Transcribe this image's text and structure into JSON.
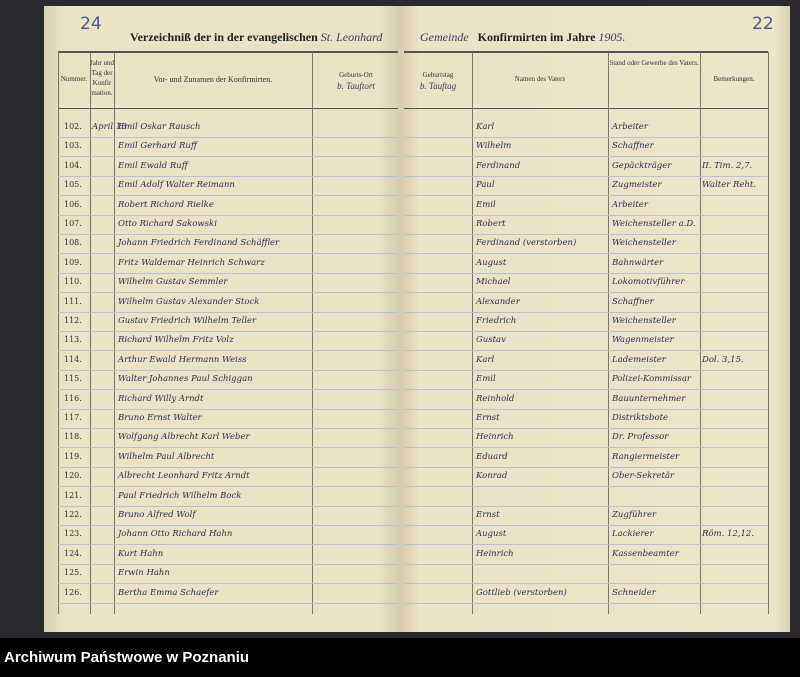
{
  "page_numbers": {
    "left": "24",
    "right": "22"
  },
  "title": {
    "left": "Verzeichniß der in der evangelischen",
    "left_hand": "St. Leonhard",
    "right_hand": "Gemeinde",
    "right": "Konfirmirten im Jahre",
    "year": "1905."
  },
  "headers": {
    "nummer": "Nummer.",
    "jahr": "Jahr und Tag der Konfirmation.",
    "name": "Vor- und Zunamen der Konfirmirten.",
    "geburtsort": "Geburts-Ort",
    "geburtsort_hand": "b. Tauftort",
    "geburtstag": "Geburtstag",
    "geburtstag_hand": "b. Tauftag",
    "vater": "Namen des Vaters",
    "stand": "Stand oder Gewerbe des Vaters.",
    "bemerkungen": "Bemerkungen."
  },
  "rows": [
    {
      "n": "102.",
      "date": "April 16",
      "name": "Emil Oskar Rausch",
      "father": "Karl",
      "stand": "Arbeiter"
    },
    {
      "n": "103.",
      "date": "",
      "name": "Emil Gerhard Ruff",
      "father": "Wilhelm",
      "stand": "Schaffner"
    },
    {
      "n": "104.",
      "date": "",
      "name": "Emil Ewald Ruff",
      "father": "Ferdinand",
      "stand": "Gepäckträger",
      "remark": "II. Tim. 2,7."
    },
    {
      "n": "105.",
      "date": "",
      "name": "Emil Adolf Walter Reimann",
      "father": "Paul",
      "stand": "Zugmeister",
      "remark": "Walter Reht."
    },
    {
      "n": "106.",
      "date": "",
      "name": "Robert Richard Rielke",
      "father": "Emil",
      "stand": "Arbeiter"
    },
    {
      "n": "107.",
      "date": "",
      "name": "Otto Richard Sakowski",
      "father": "Robert",
      "stand": "Weichensteller a.D."
    },
    {
      "n": "108.",
      "date": "",
      "name": "Johann Friedrich Ferdinand Schäffler",
      "father": "Ferdinand (verstorben)",
      "stand": "Weichensteller"
    },
    {
      "n": "109.",
      "date": "",
      "name": "Fritz Waldemar Heinrich Schwarz",
      "father": "August",
      "stand": "Bahnwärter"
    },
    {
      "n": "110.",
      "date": "",
      "name": "Wilhelm Gustav Semmler",
      "father": "Michael",
      "stand": "Lokomotivführer"
    },
    {
      "n": "111.",
      "date": "",
      "name": "Wilhelm Gustav Alexander Stock",
      "father": "Alexander",
      "stand": "Schaffner"
    },
    {
      "n": "112.",
      "date": "",
      "name": "Gustav Friedrich Wilhelm Teller",
      "father": "Friedrich",
      "stand": "Weichensteller"
    },
    {
      "n": "113.",
      "date": "",
      "name": "Richard Wilhelm Fritz Volz",
      "father": "Gustav",
      "stand": "Wagenmeister"
    },
    {
      "n": "114.",
      "date": "",
      "name": "Arthur Ewald Hermann Weiss",
      "father": "Karl",
      "stand": "Lademeister",
      "remark": "Dol. 3,15."
    },
    {
      "n": "115.",
      "date": "",
      "name": "Walter Johannes Paul Schiggan",
      "father": "Emil",
      "stand": "Polizei-Kommissar"
    },
    {
      "n": "116.",
      "date": "",
      "name": "Richard Willy Arndt",
      "father": "Reinhold",
      "stand": "Bauunternehmer"
    },
    {
      "n": "117.",
      "date": "",
      "name": "Bruno Ernst Walter",
      "father": "Ernst",
      "stand": "Distriktsbote"
    },
    {
      "n": "118.",
      "date": "",
      "name": "Wolfgang Albrecht Karl Weber",
      "father": "Heinrich",
      "stand": "Dr. Professor"
    },
    {
      "n": "119.",
      "date": "",
      "name": "Wilhelm Paul Albrecht",
      "father": "Eduard",
      "stand": "Rangiermeister"
    },
    {
      "n": "120.",
      "date": "",
      "name": "Albrecht Leonhard Fritz Arndt",
      "father": "Konrad",
      "stand": "Ober-Sekretär"
    },
    {
      "n": "121.",
      "date": "",
      "name": "Paul Friedrich Wilhelm Bock",
      "father": "",
      "stand": ""
    },
    {
      "n": "122.",
      "date": "",
      "name": "Bruno Alfred Wolf",
      "father": "Ernst",
      "stand": "Zugführer"
    },
    {
      "n": "123.",
      "date": "",
      "name": "Johann Otto Richard Hahn",
      "father": "August",
      "stand": "Lackierer",
      "remark": "Röm. 12,12."
    },
    {
      "n": "124.",
      "date": "",
      "name": "Kurt Hahn",
      "father": "Heinrich",
      "stand": "Kassenbeamter"
    },
    {
      "n": "125.",
      "date": "",
      "name": "Erwin Hahn",
      "father": "",
      "stand": ""
    },
    {
      "n": "126.",
      "date": "",
      "name": "Bertha Emma Schaefer",
      "father": "Gottlieb (verstorben)",
      "stand": "Schneider"
    }
  ],
  "footer": "Archiwum Państwowe w Poznaniu",
  "colors": {
    "paper": "#ece2c6",
    "ink": "#2d3050",
    "ruling": "#b7c4cf",
    "frame": "#2a2b30"
  }
}
